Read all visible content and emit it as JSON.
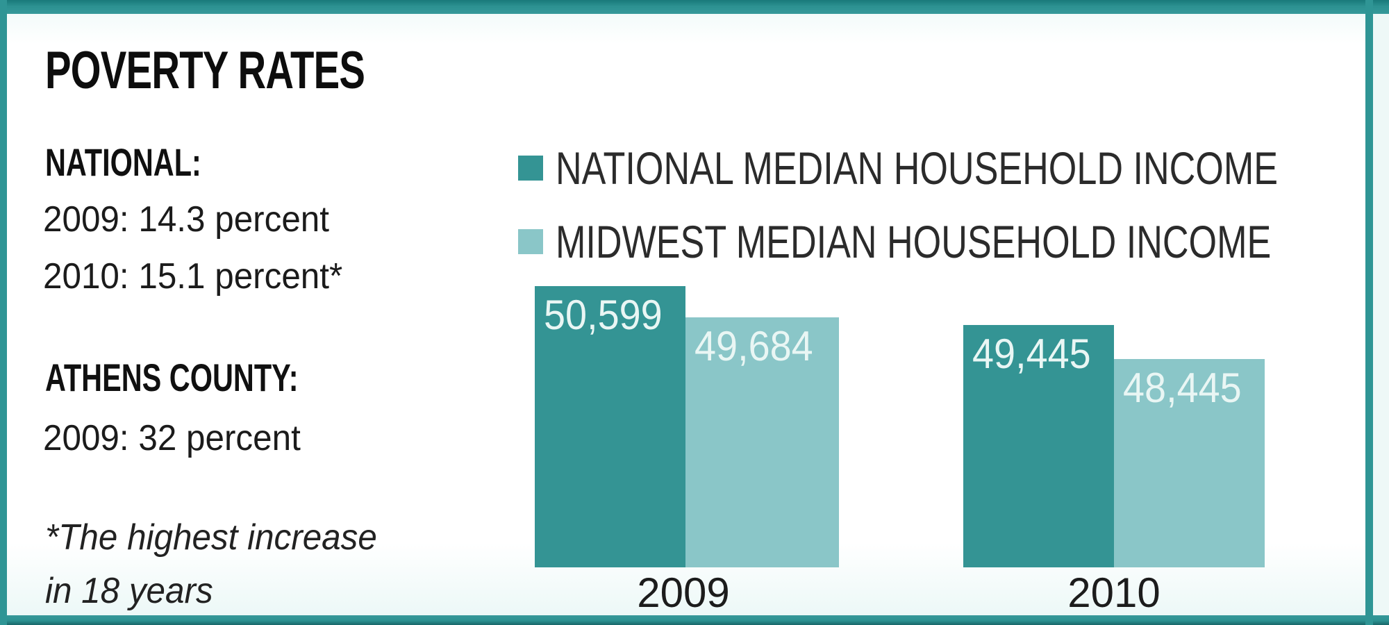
{
  "panel": {
    "title": "POVERTY RATES"
  },
  "stats": {
    "national": {
      "heading": "NATIONAL:",
      "lines": [
        "2009: 14.3 percent",
        "2010: 15.1 percent*"
      ]
    },
    "athens": {
      "heading": "ATHENS COUNTY:",
      "lines": [
        "2009: 32 percent"
      ]
    },
    "footnote_lines": [
      "*The highest increase",
      "in 18 years"
    ]
  },
  "legend": {
    "items": [
      {
        "label": "NATIONAL MEDIAN HOUSEHOLD INCOME",
        "color": "#349494"
      },
      {
        "label": "MIDWEST MEDIAN HOUSEHOLD INCOME",
        "color": "#8ac6c8"
      }
    ]
  },
  "chart_data": {
    "type": "bar",
    "categories": [
      "2009",
      "2010"
    ],
    "series": [
      {
        "name": "NATIONAL MEDIAN HOUSEHOLD INCOME",
        "color": "#349494",
        "values": [
          50599,
          49445
        ],
        "value_labels": [
          "50,599",
          "49,445"
        ]
      },
      {
        "name": "MIDWEST MEDIAN HOUSEHOLD INCOME",
        "color": "#8ac6c8",
        "values": [
          49684,
          48445
        ],
        "value_labels": [
          "49,684",
          "48,445"
        ]
      }
    ],
    "xlabel": "",
    "ylabel": "",
    "y_axis_shown": false,
    "gridlines": false,
    "data_labels_inside_bars": true,
    "legend_position": "top-left"
  },
  "colors": {
    "frame_teal": "#2c9191",
    "panel_background": "#ffffff",
    "value_label_text": "#e9f6f4"
  }
}
